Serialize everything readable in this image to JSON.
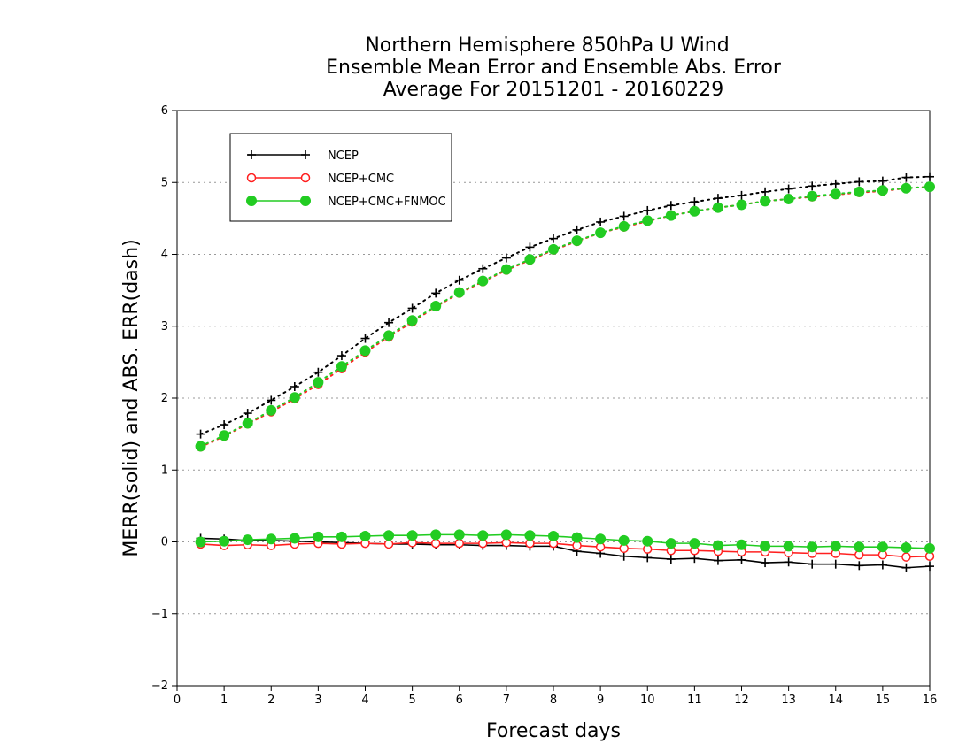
{
  "chart_data": {
    "type": "line",
    "title": [
      "Northern Hemisphere 850hPa U Wind",
      "Ensemble Mean Error and Ensemble Abs. Error",
      "Average For 20151201 - 20160229"
    ],
    "xlabel": "Forecast days",
    "ylabel": "MERR(solid) and ABS. ERR(dash)",
    "xlim": [
      0,
      16
    ],
    "ylim": [
      -2,
      6
    ],
    "xticks": [
      0,
      1,
      2,
      3,
      4,
      5,
      6,
      7,
      8,
      9,
      10,
      11,
      12,
      13,
      14,
      15,
      16
    ],
    "yticks": [
      -2,
      -1,
      0,
      1,
      2,
      3,
      4,
      5,
      6
    ],
    "grid": "horizontal dotted",
    "legend_position": "top-left",
    "x": [
      0.5,
      1,
      1.5,
      2,
      2.5,
      3,
      3.5,
      4,
      4.5,
      5,
      5.5,
      6,
      6.5,
      7,
      7.5,
      8,
      8.5,
      9,
      9.5,
      10,
      10.5,
      11,
      11.5,
      12,
      12.5,
      13,
      13.5,
      14,
      14.5,
      15,
      15.5,
      16
    ],
    "series": [
      {
        "name": "NCEP",
        "color": "#000000",
        "marker": "plus",
        "merr": [
          0.05,
          0.04,
          0.02,
          0.02,
          0.01,
          0.0,
          -0.01,
          -0.02,
          -0.03,
          -0.03,
          -0.04,
          -0.04,
          -0.05,
          -0.05,
          -0.06,
          -0.06,
          -0.13,
          -0.16,
          -0.2,
          -0.22,
          -0.24,
          -0.23,
          -0.26,
          -0.25,
          -0.29,
          -0.28,
          -0.31,
          -0.31,
          -0.33,
          -0.32,
          -0.36,
          -0.34
        ],
        "abs_err": [
          1.5,
          1.63,
          1.79,
          1.97,
          2.16,
          2.36,
          2.59,
          2.83,
          3.05,
          3.25,
          3.46,
          3.64,
          3.8,
          3.95,
          4.1,
          4.22,
          4.34,
          4.45,
          4.53,
          4.61,
          4.68,
          4.73,
          4.78,
          4.82,
          4.87,
          4.91,
          4.95,
          4.98,
          5.01,
          5.02,
          5.07,
          5.08
        ]
      },
      {
        "name": "NCEP+CMC",
        "color": "#ff2020",
        "marker": "open-circle",
        "merr": [
          -0.03,
          -0.05,
          -0.04,
          -0.05,
          -0.03,
          -0.02,
          -0.03,
          -0.02,
          -0.03,
          -0.01,
          -0.02,
          -0.02,
          -0.02,
          -0.01,
          -0.02,
          -0.02,
          -0.05,
          -0.07,
          -0.09,
          -0.1,
          -0.12,
          -0.12,
          -0.13,
          -0.14,
          -0.14,
          -0.15,
          -0.16,
          -0.16,
          -0.18,
          -0.18,
          -0.21,
          -0.2
        ],
        "abs_err": [
          1.32,
          1.47,
          1.64,
          1.81,
          1.99,
          2.19,
          2.41,
          2.64,
          2.85,
          3.06,
          3.27,
          3.46,
          3.62,
          3.78,
          3.92,
          4.06,
          4.18,
          4.3,
          4.38,
          4.46,
          4.54,
          4.6,
          4.65,
          4.69,
          4.74,
          4.77,
          4.8,
          4.83,
          4.86,
          4.88,
          4.92,
          4.94
        ]
      },
      {
        "name": "NCEP+CMC+FNMOC",
        "color": "#22cc22",
        "marker": "filled-circle",
        "merr": [
          0.0,
          0.01,
          0.03,
          0.04,
          0.05,
          0.07,
          0.07,
          0.08,
          0.09,
          0.09,
          0.1,
          0.1,
          0.09,
          0.1,
          0.09,
          0.08,
          0.06,
          0.04,
          0.02,
          0.01,
          -0.02,
          -0.02,
          -0.05,
          -0.04,
          -0.06,
          -0.06,
          -0.07,
          -0.06,
          -0.07,
          -0.07,
          -0.08,
          -0.09
        ],
        "abs_err": [
          1.33,
          1.48,
          1.65,
          1.83,
          2.01,
          2.22,
          2.44,
          2.66,
          2.87,
          3.08,
          3.28,
          3.47,
          3.63,
          3.79,
          3.93,
          4.07,
          4.19,
          4.3,
          4.39,
          4.47,
          4.54,
          4.6,
          4.65,
          4.69,
          4.74,
          4.77,
          4.81,
          4.84,
          4.87,
          4.89,
          4.92,
          4.94
        ]
      }
    ]
  }
}
